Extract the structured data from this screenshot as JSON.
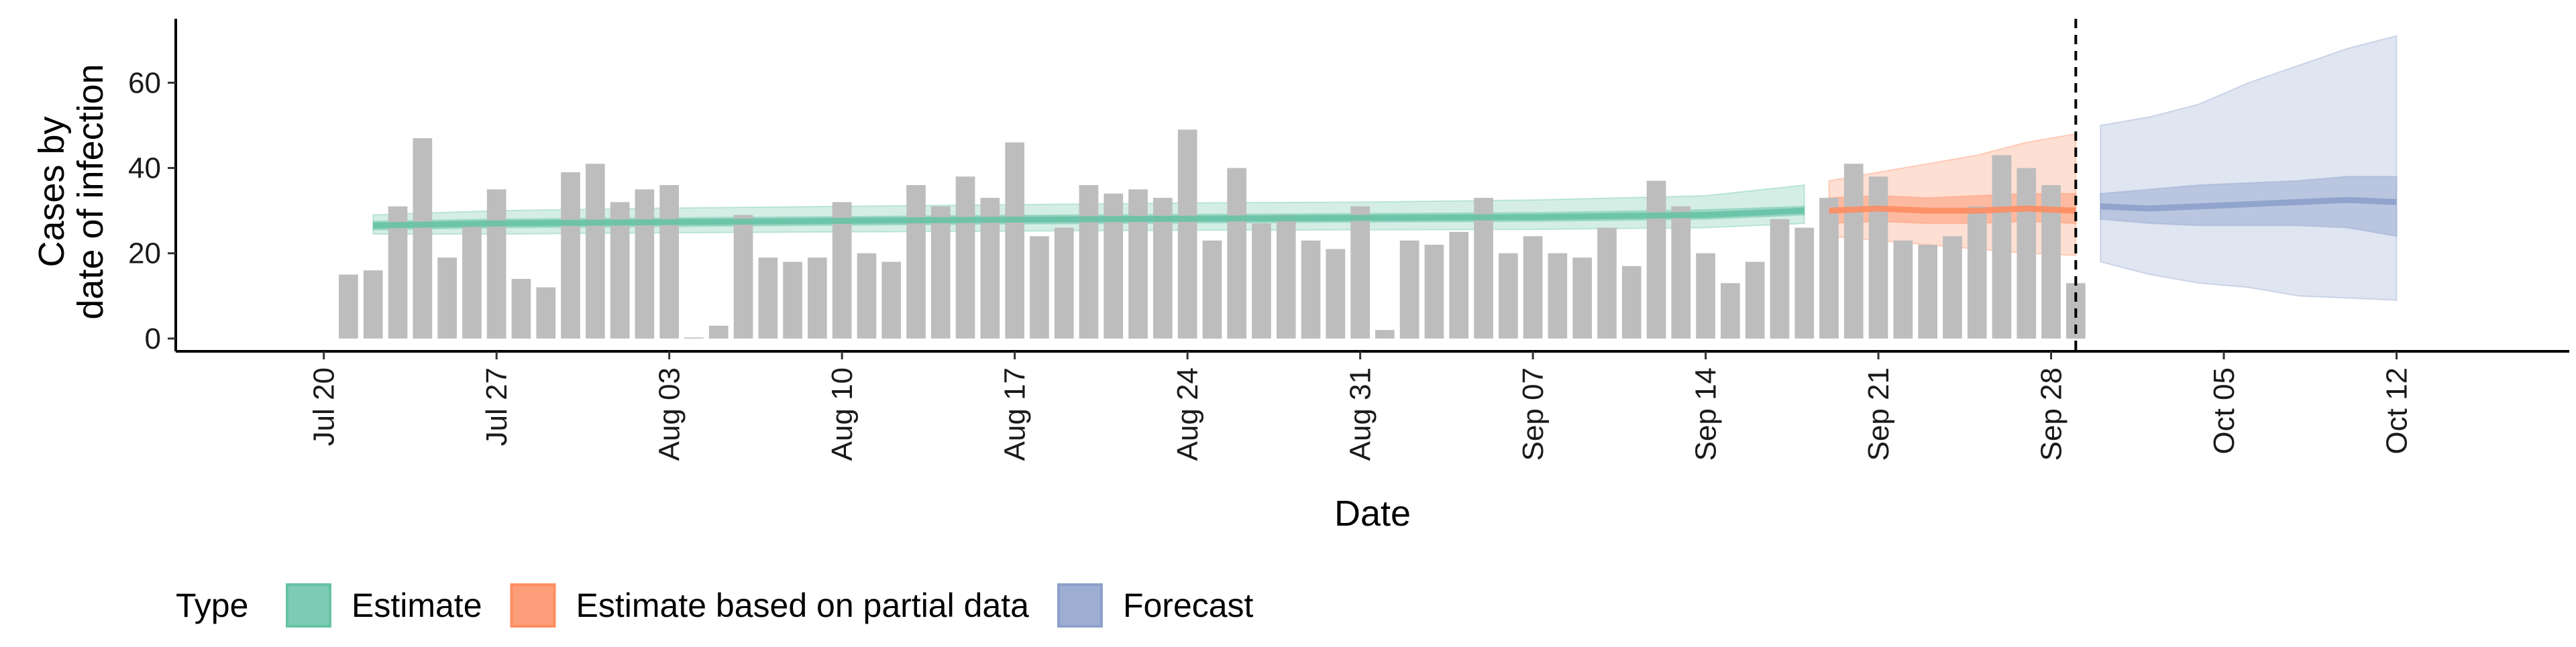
{
  "chart_data": {
    "type": "bar",
    "title": "",
    "xlabel": "Date",
    "ylabel_lines": [
      "Cases by",
      "date of infection"
    ],
    "ylim": [
      -3,
      75
    ],
    "y_ticks": [
      0,
      20,
      40,
      60
    ],
    "x_ticks": [
      {
        "date": "2020-07-20",
        "label": "Jul 20"
      },
      {
        "date": "2020-07-27",
        "label": "Jul 27"
      },
      {
        "date": "2020-08-03",
        "label": "Aug 03"
      },
      {
        "date": "2020-08-10",
        "label": "Aug 10"
      },
      {
        "date": "2020-08-17",
        "label": "Aug 17"
      },
      {
        "date": "2020-08-24",
        "label": "Aug 24"
      },
      {
        "date": "2020-08-31",
        "label": "Aug 31"
      },
      {
        "date": "2020-09-07",
        "label": "Sep 07"
      },
      {
        "date": "2020-09-14",
        "label": "Sep 14"
      },
      {
        "date": "2020-09-21",
        "label": "Sep 21"
      },
      {
        "date": "2020-09-28",
        "label": "Sep 28"
      },
      {
        "date": "2020-10-05",
        "label": "Oct 05"
      },
      {
        "date": "2020-10-12",
        "label": "Oct 12"
      }
    ],
    "xlim": [
      "2020-07-14",
      "2020-10-19"
    ],
    "bars": {
      "color": "#bdbdbd",
      "x": [
        "2020-07-21",
        "2020-07-22",
        "2020-07-23",
        "2020-07-24",
        "2020-07-25",
        "2020-07-26",
        "2020-07-27",
        "2020-07-28",
        "2020-07-29",
        "2020-07-30",
        "2020-07-31",
        "2020-08-01",
        "2020-08-02",
        "2020-08-03",
        "2020-08-04",
        "2020-08-05",
        "2020-08-06",
        "2020-08-07",
        "2020-08-08",
        "2020-08-09",
        "2020-08-10",
        "2020-08-11",
        "2020-08-12",
        "2020-08-13",
        "2020-08-14",
        "2020-08-15",
        "2020-08-16",
        "2020-08-17",
        "2020-08-18",
        "2020-08-19",
        "2020-08-20",
        "2020-08-21",
        "2020-08-22",
        "2020-08-23",
        "2020-08-24",
        "2020-08-25",
        "2020-08-26",
        "2020-08-27",
        "2020-08-28",
        "2020-08-29",
        "2020-08-30",
        "2020-08-31",
        "2020-09-01",
        "2020-09-02",
        "2020-09-03",
        "2020-09-04",
        "2020-09-05",
        "2020-09-06",
        "2020-09-07",
        "2020-09-08",
        "2020-09-09",
        "2020-09-10",
        "2020-09-11",
        "2020-09-12",
        "2020-09-13",
        "2020-09-14",
        "2020-09-15",
        "2020-09-16",
        "2020-09-17",
        "2020-09-18",
        "2020-09-19",
        "2020-09-20",
        "2020-09-21",
        "2020-09-22",
        "2020-09-23",
        "2020-09-24",
        "2020-09-25",
        "2020-09-26",
        "2020-09-27",
        "2020-09-28",
        "2020-09-29"
      ],
      "values": [
        15,
        16,
        31,
        47,
        19,
        27,
        35,
        14,
        12,
        39,
        41,
        32,
        35,
        36,
        0,
        3,
        29,
        19,
        18,
        19,
        32,
        20,
        18,
        36,
        31,
        38,
        33,
        46,
        24,
        26,
        36,
        34,
        35,
        33,
        49,
        23,
        40,
        27,
        29,
        23,
        21,
        31,
        2,
        23,
        22,
        25,
        33,
        20,
        24,
        20,
        19,
        26,
        17,
        37,
        31,
        20,
        13,
        18,
        28,
        26,
        33,
        41,
        38,
        23,
        22,
        24,
        31,
        43,
        40,
        36,
        13
      ]
    },
    "series": [
      {
        "name": "Estimate",
        "color": "#66c2a5",
        "x": [
          "2020-07-22",
          "2020-07-27",
          "2020-08-03",
          "2020-08-10",
          "2020-08-17",
          "2020-08-24",
          "2020-08-31",
          "2020-09-07",
          "2020-09-14",
          "2020-09-18"
        ],
        "median": [
          26.5,
          27,
          27.3,
          27.6,
          27.9,
          28.1,
          28.3,
          28.5,
          29.0,
          30.0
        ],
        "lower_50": [
          25.5,
          26,
          26.3,
          26.6,
          26.9,
          27.1,
          27.3,
          27.5,
          28.0,
          29.0
        ],
        "upper_50": [
          27.5,
          28,
          28.3,
          28.6,
          28.9,
          29.1,
          29.3,
          29.5,
          30.2,
          31.0
        ],
        "lower_90": [
          24.5,
          24.5,
          24.8,
          25.0,
          25.2,
          25.4,
          25.5,
          25.6,
          26.0,
          27.0
        ],
        "upper_90": [
          29.0,
          30.0,
          30.6,
          31.0,
          31.4,
          31.8,
          32.0,
          32.5,
          33.5,
          36.0
        ]
      },
      {
        "name": "Estimate based on partial data",
        "color": "#fc8d62",
        "x": [
          "2020-09-19",
          "2020-09-21",
          "2020-09-23",
          "2020-09-25",
          "2020-09-27",
          "2020-09-29"
        ],
        "median": [
          30,
          30.5,
          30,
          30,
          30.5,
          30
        ],
        "lower_50": [
          27,
          27.5,
          27,
          27,
          27.5,
          27
        ],
        "upper_50": [
          33,
          33.5,
          33,
          33.5,
          34,
          34
        ],
        "lower_90": [
          24,
          23,
          22,
          21,
          20,
          19.5
        ],
        "upper_90": [
          37,
          39,
          41,
          43,
          46,
          48
        ]
      },
      {
        "name": "Forecast",
        "color": "#8da0cb",
        "x": [
          "2020-09-30",
          "2020-10-02",
          "2020-10-04",
          "2020-10-06",
          "2020-10-08",
          "2020-10-10",
          "2020-10-12"
        ],
        "median": [
          31,
          30.5,
          31,
          31.5,
          32,
          32.5,
          32
        ],
        "lower_50": [
          28,
          27,
          26.5,
          26.5,
          26.5,
          26,
          24
        ],
        "upper_50": [
          34,
          35,
          36,
          36.5,
          37,
          38,
          38
        ],
        "lower_90": [
          18,
          15,
          13,
          12,
          10,
          9.5,
          9
        ],
        "upper_90": [
          50,
          52,
          55,
          60,
          64,
          68,
          71
        ]
      }
    ],
    "vline": {
      "x": "2020-09-29",
      "style": "dashed",
      "color": "#000000"
    },
    "legend": {
      "title": "Type",
      "position": "bottom",
      "entries": [
        "Estimate",
        "Estimate based on partial data",
        "Forecast"
      ]
    },
    "grid": false
  }
}
